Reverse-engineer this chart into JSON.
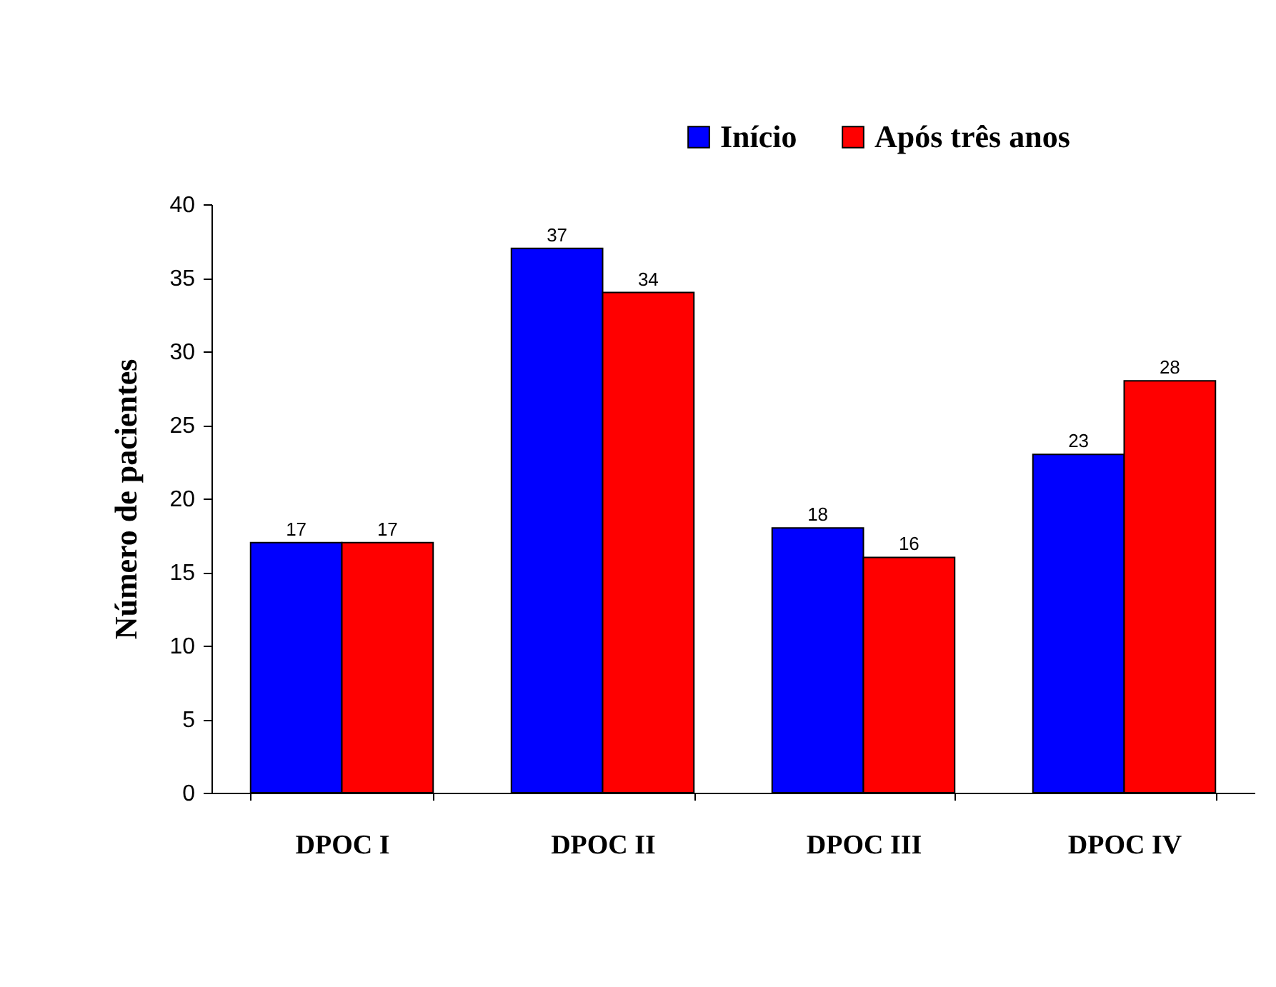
{
  "chart_data": {
    "type": "bar",
    "ylabel": "Número de pacientes",
    "categories": [
      "DPOC I",
      "DPOC II",
      "DPOC III",
      "DPOC IV"
    ],
    "series": [
      {
        "name": "Início",
        "color": "#0000ff",
        "values": [
          17,
          37,
          18,
          23
        ]
      },
      {
        "name": "Após três anos",
        "color": "#ff0000",
        "values": [
          17,
          34,
          16,
          28
        ]
      }
    ],
    "ylim": [
      0,
      40
    ],
    "yticks": [
      0,
      5,
      10,
      15,
      20,
      25,
      30,
      35,
      40
    ],
    "grid": false,
    "legend": "top right",
    "data_labels": true
  }
}
